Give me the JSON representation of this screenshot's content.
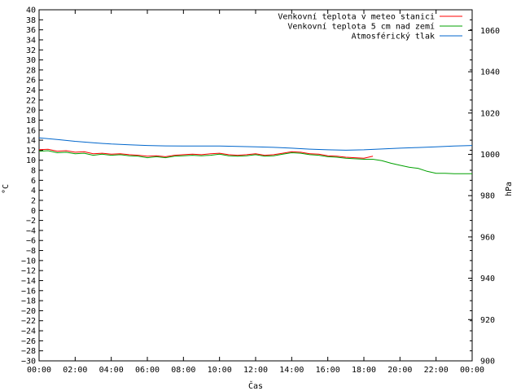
{
  "chart_data": {
    "type": "line",
    "xlabel": "Čas",
    "ylabel": "°C",
    "y2label": "hPa",
    "x_ticks": [
      "00:00",
      "02:00",
      "04:00",
      "06:00",
      "08:00",
      "10:00",
      "12:00",
      "14:00",
      "16:00",
      "18:00",
      "20:00",
      "22:00",
      "00:00"
    ],
    "xlim_hours": [
      0,
      24
    ],
    "ylim": [
      -30,
      40
    ],
    "y_step": 2,
    "y2lim": [
      900,
      1070
    ],
    "y2_ticks": [
      900,
      920,
      940,
      960,
      980,
      1000,
      1020,
      1040,
      1060
    ],
    "grid": false,
    "legend_position": "top-right",
    "series": [
      {
        "name": "Venkovní teplota v meteo stanici",
        "axis": "left",
        "color": "#ff0000",
        "x": [
          0,
          0.5,
          1,
          1.5,
          2,
          2.5,
          3,
          3.5,
          4,
          4.5,
          5,
          5.5,
          6,
          6.5,
          7,
          7.5,
          8,
          8.5,
          9,
          9.5,
          10,
          10.5,
          11,
          11.5,
          12,
          12.5,
          13,
          13.5,
          14,
          14.5,
          15,
          15.5,
          16,
          16.5,
          17,
          17.5,
          18,
          18.5
        ],
        "y": [
          12.1,
          12.2,
          11.8,
          11.9,
          11.6,
          11.7,
          11.3,
          11.4,
          11.2,
          11.3,
          11.1,
          11.0,
          10.8,
          10.9,
          10.7,
          11.0,
          11.1,
          11.2,
          11.1,
          11.3,
          11.4,
          11.1,
          11.0,
          11.1,
          11.3,
          11.0,
          11.1,
          11.4,
          11.7,
          11.6,
          11.3,
          11.2,
          10.9,
          10.8,
          10.6,
          10.5,
          10.4,
          10.8
        ]
      },
      {
        "name": "Venkovní teplota 5 cm nad zemí",
        "axis": "left",
        "color": "#00a000",
        "x": [
          0,
          0.5,
          1,
          1.5,
          2,
          2.5,
          3,
          3.5,
          4,
          4.5,
          5,
          5.5,
          6,
          6.5,
          7,
          7.5,
          8,
          8.5,
          9,
          9.5,
          10,
          10.5,
          11,
          11.5,
          12,
          12.5,
          13,
          13.5,
          14,
          14.5,
          15,
          15.5,
          16,
          16.5,
          17,
          17.5,
          18,
          18.5,
          19,
          19.5,
          20,
          20.5,
          21,
          21.5,
          22,
          22.5,
          23,
          23.5,
          24
        ],
        "y": [
          11.8,
          11.9,
          11.5,
          11.6,
          11.3,
          11.4,
          11.0,
          11.2,
          11.0,
          11.1,
          10.9,
          10.8,
          10.5,
          10.7,
          10.5,
          10.8,
          10.9,
          11.0,
          10.9,
          11.0,
          11.2,
          10.9,
          10.8,
          10.9,
          11.1,
          10.8,
          10.9,
          11.2,
          11.5,
          11.4,
          11.1,
          11.0,
          10.7,
          10.6,
          10.4,
          10.3,
          10.2,
          10.2,
          9.9,
          9.4,
          9.0,
          8.6,
          8.4,
          7.8,
          7.4,
          7.4,
          7.3,
          7.3,
          7.3
        ]
      },
      {
        "name": "Atmosférický tlak",
        "axis": "right",
        "color": "#0066cc",
        "x": [
          0,
          1,
          2,
          3,
          4,
          5,
          6,
          7,
          8,
          9,
          10,
          11,
          12,
          13,
          14,
          15,
          16,
          17,
          18,
          19,
          20,
          21,
          22,
          23,
          24
        ],
        "y": [
          1008.0,
          1007.2,
          1006.3,
          1005.6,
          1005.0,
          1004.6,
          1004.3,
          1004.1,
          1004.0,
          1004.0,
          1004.0,
          1003.8,
          1003.6,
          1003.4,
          1003.0,
          1002.5,
          1002.2,
          1002.0,
          1002.2,
          1002.6,
          1003.0,
          1003.3,
          1003.6,
          1004.0,
          1004.3
        ]
      }
    ]
  }
}
